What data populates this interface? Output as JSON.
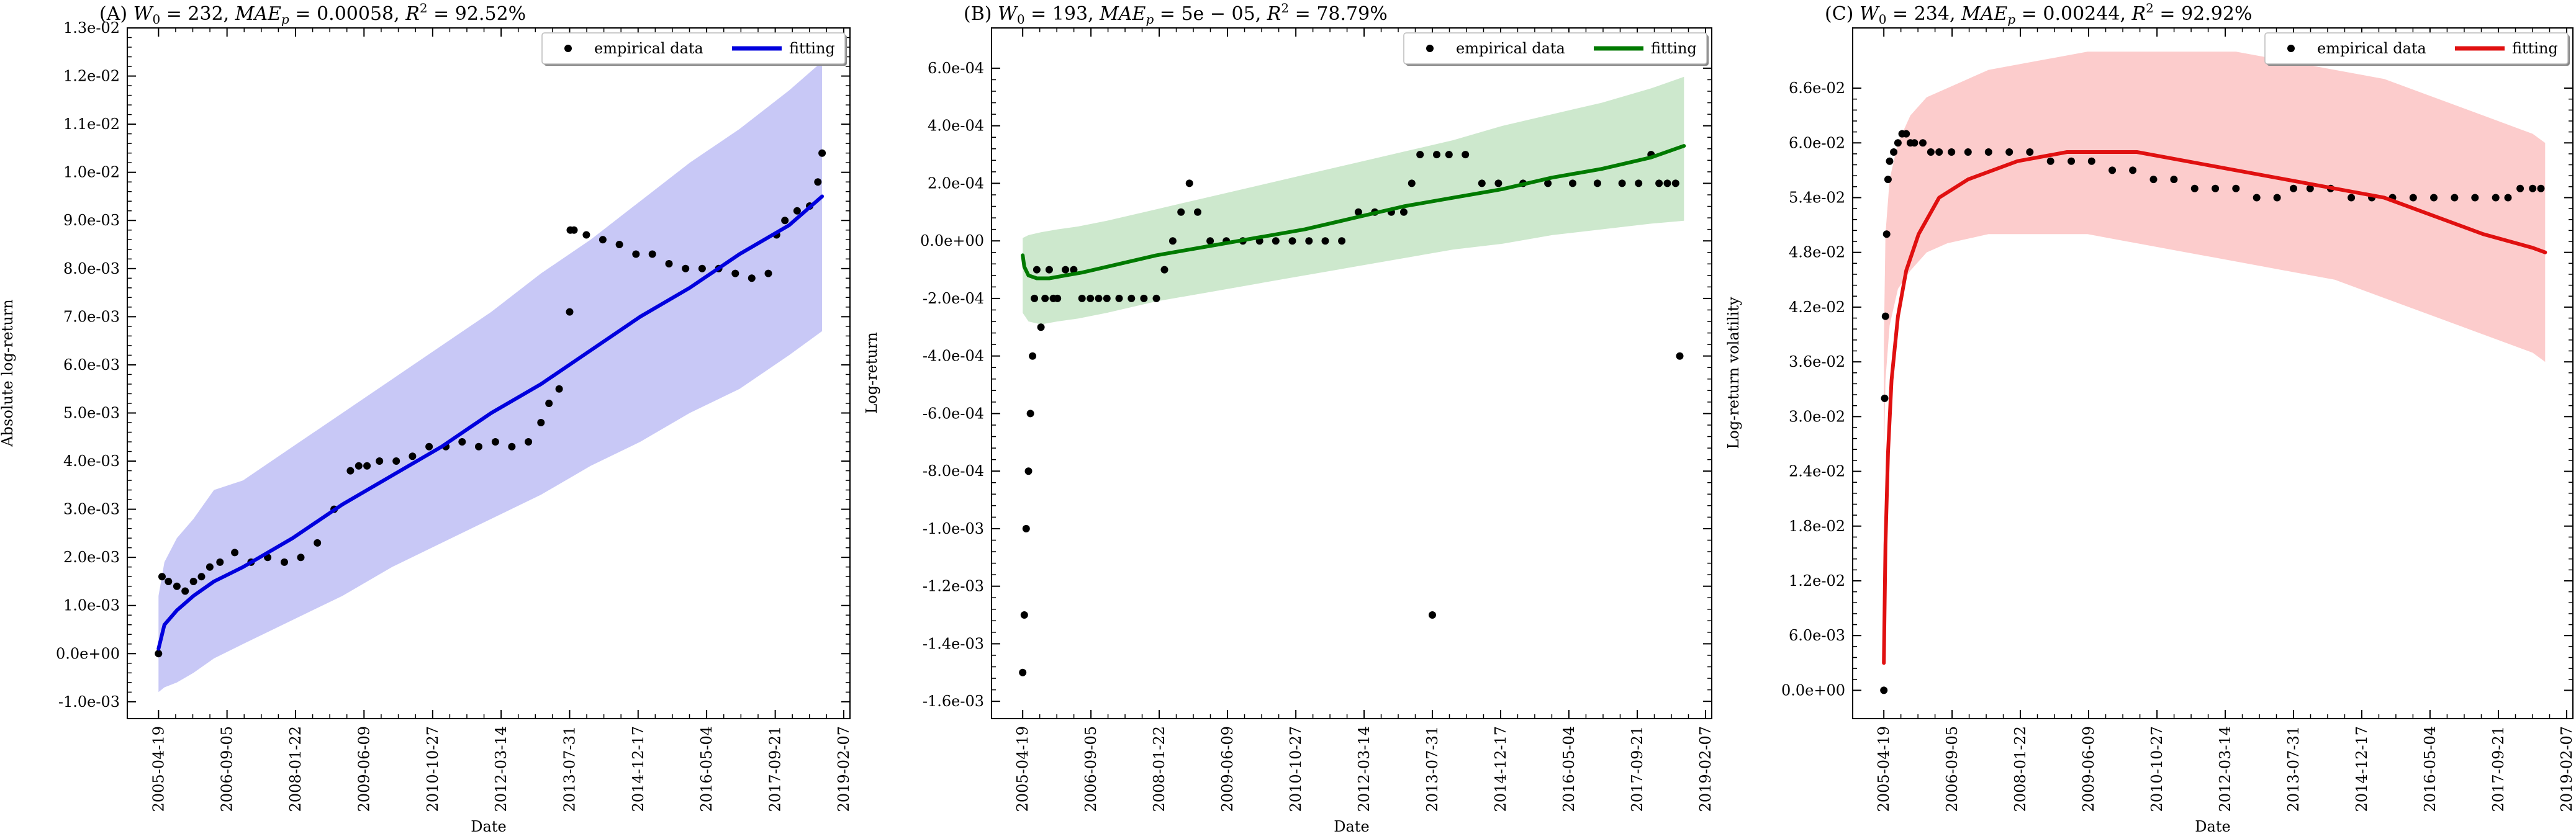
{
  "chart_data": [
    {
      "type": "scatter",
      "title": "(A) W0 = 232, MAEp = 0.00058, R2 = 92.52%",
      "title_parts": {
        "prefix": "(A) ",
        "w0": "232",
        "mae": "0.00058",
        "r2": "92.52%"
      },
      "xlabel": "Date",
      "ylabel": "Absolute log-return",
      "x_ticks": [
        "2005-04-19",
        "2006-09-05",
        "2008-01-22",
        "2009-06-09",
        "2010-10-27",
        "2012-03-14",
        "2013-07-31",
        "2014-12-17",
        "2016-05-04",
        "2017-09-21",
        "2019-02-07"
      ],
      "xlim": [
        "2004-09-01",
        "2019-03-25"
      ],
      "y_ticks": [
        "-1.0e-03",
        "0.0e+00",
        "1.0e-03",
        "2.0e-03",
        "3.0e-03",
        "4.0e-03",
        "5.0e-03",
        "6.0e-03",
        "7.0e-03",
        "8.0e-03",
        "9.0e-03",
        "1.0e-02",
        "1.1e-02",
        "1.2e-02",
        "1.3e-02"
      ],
      "ylim": [
        -0.00135,
        0.013
      ],
      "grid": false,
      "legend_position": "top-right",
      "legend": [
        "empirical data",
        "fitting"
      ],
      "colors": {
        "fit": "#0000dd",
        "band": "#c8c8f6",
        "data": "#000000"
      },
      "series": [
        {
          "name": "empirical data",
          "kind": "scatter",
          "x": [
            "2005-04-19",
            "2005-05-15",
            "2005-07-01",
            "2005-09-01",
            "2005-11-01",
            "2006-01-01",
            "2006-03-01",
            "2006-05-01",
            "2006-07-15",
            "2006-11-01",
            "2007-03-01",
            "2007-07-01",
            "2007-11-01",
            "2008-03-01",
            "2008-07-01",
            "2008-11-01",
            "2009-03-01",
            "2009-05-01",
            "2009-07-01",
            "2009-10-01",
            "2010-02-01",
            "2010-06-01",
            "2010-10-01",
            "2011-02-01",
            "2011-06-01",
            "2011-10-01",
            "2012-02-01",
            "2012-06-01",
            "2012-10-01",
            "2013-01-01",
            "2013-03-01",
            "2013-05-15",
            "2013-07-31",
            "2013-08-05",
            "2013-09-01",
            "2013-12-01",
            "2014-04-01",
            "2014-08-01",
            "2014-12-01",
            "2015-04-01",
            "2015-08-01",
            "2015-12-01",
            "2016-04-01",
            "2016-08-01",
            "2016-12-01",
            "2017-04-01",
            "2017-08-01",
            "2017-10-01",
            "2017-12-01",
            "2018-03-01",
            "2018-06-01",
            "2018-08-01",
            "2018-09-01"
          ],
          "y": [
            0.0,
            0.0016,
            0.0015,
            0.0014,
            0.0013,
            0.0015,
            0.0016,
            0.0018,
            0.0019,
            0.0021,
            0.0019,
            0.002,
            0.0019,
            0.002,
            0.0023,
            0.003,
            0.0038,
            0.0039,
            0.0039,
            0.004,
            0.004,
            0.0041,
            0.0043,
            0.0043,
            0.0044,
            0.0043,
            0.0044,
            0.0043,
            0.0044,
            0.0048,
            0.0052,
            0.0055,
            0.0071,
            0.0088,
            0.0088,
            0.0087,
            0.0086,
            0.0085,
            0.0083,
            0.0083,
            0.0081,
            0.008,
            0.008,
            0.008,
            0.0079,
            0.0078,
            0.0079,
            0.0087,
            0.009,
            0.0092,
            0.0093,
            0.0098,
            0.0104
          ]
        },
        {
          "name": "fitting",
          "kind": "line",
          "x": [
            "2005-04-19",
            "2005-06-01",
            "2005-09-01",
            "2006-01-01",
            "2006-06-01",
            "2007-01-01",
            "2008-01-01",
            "2009-01-01",
            "2010-01-01",
            "2011-01-01",
            "2012-01-01",
            "2013-01-01",
            "2014-01-01",
            "2015-01-01",
            "2016-01-01",
            "2017-01-01",
            "2018-01-01",
            "2018-09-01"
          ],
          "y": [
            0.0001,
            0.0006,
            0.0009,
            0.0012,
            0.0015,
            0.0018,
            0.0024,
            0.0031,
            0.0037,
            0.0043,
            0.005,
            0.0056,
            0.0063,
            0.007,
            0.0076,
            0.0083,
            0.0089,
            0.0095
          ]
        },
        {
          "kind": "band",
          "x": [
            "2005-04-19",
            "2005-06-01",
            "2005-09-01",
            "2006-01-01",
            "2006-06-01",
            "2007-01-01",
            "2008-01-01",
            "2009-01-01",
            "2010-01-01",
            "2011-01-01",
            "2012-01-01",
            "2013-01-01",
            "2014-01-01",
            "2015-01-01",
            "2016-01-01",
            "2017-01-01",
            "2018-01-01",
            "2018-09-01"
          ],
          "lower": [
            -0.0008,
            -0.0007,
            -0.0006,
            -0.0004,
            -0.0001,
            0.0002,
            0.0007,
            0.0012,
            0.0018,
            0.0023,
            0.0028,
            0.0033,
            0.0039,
            0.0044,
            0.005,
            0.0055,
            0.0062,
            0.0067
          ],
          "upper": [
            0.0012,
            0.0019,
            0.0024,
            0.0028,
            0.0034,
            0.0036,
            0.0043,
            0.005,
            0.0057,
            0.0064,
            0.0071,
            0.0079,
            0.0086,
            0.0094,
            0.0102,
            0.0109,
            0.0117,
            0.0123
          ]
        }
      ]
    },
    {
      "type": "scatter",
      "title": "(B) W0 = 193, MAEp = 5e − 05, R2 = 78.79%",
      "title_parts": {
        "prefix": "(B) ",
        "w0": "193",
        "mae": "5e − 05",
        "r2": "78.79%"
      },
      "xlabel": "Date",
      "ylabel": "Log-return",
      "x_ticks": [
        "2005-04-19",
        "2006-09-05",
        "2008-01-22",
        "2009-06-09",
        "2010-10-27",
        "2012-03-14",
        "2013-07-31",
        "2014-12-17",
        "2016-05-04",
        "2017-09-21",
        "2019-02-07"
      ],
      "xlim": [
        "2004-09-01",
        "2019-03-25"
      ],
      "y_ticks": [
        "-1.6e-03",
        "-1.4e-03",
        "-1.2e-03",
        "-1.0e-03",
        "-8.0e-04",
        "-6.0e-04",
        "-4.0e-04",
        "-2.0e-04",
        "0.0e+00",
        "2.0e-04",
        "4.0e-04",
        "6.0e-04"
      ],
      "ylim": [
        -0.00166,
        0.00074
      ],
      "grid": false,
      "legend_position": "top-right",
      "legend": [
        "empirical data",
        "fitting"
      ],
      "colors": {
        "fit": "#007a00",
        "band": "#cde8cd",
        "data": "#000000"
      },
      "series": [
        {
          "name": "empirical data",
          "kind": "scatter",
          "x": [
            "2005-04-19",
            "2005-05-01",
            "2005-05-15",
            "2005-06-01",
            "2005-06-15",
            "2005-07-01",
            "2005-07-15",
            "2005-08-01",
            "2005-09-01",
            "2005-10-01",
            "2005-11-01",
            "2005-12-01",
            "2006-01-01",
            "2006-03-01",
            "2006-05-01",
            "2006-07-01",
            "2006-09-01",
            "2006-11-01",
            "2007-01-01",
            "2007-04-01",
            "2007-07-01",
            "2007-10-01",
            "2008-01-01",
            "2008-03-01",
            "2008-05-01",
            "2008-07-01",
            "2008-09-01",
            "2008-11-01",
            "2009-02-01",
            "2009-06-01",
            "2009-10-01",
            "2010-02-01",
            "2010-06-01",
            "2010-10-01",
            "2011-02-01",
            "2011-06-01",
            "2011-10-01",
            "2012-02-01",
            "2012-06-01",
            "2012-10-01",
            "2013-01-01",
            "2013-03-01",
            "2013-05-01",
            "2013-07-31",
            "2013-09-01",
            "2013-12-01",
            "2014-04-01",
            "2014-08-01",
            "2014-12-01",
            "2015-06-01",
            "2015-12-01",
            "2016-06-01",
            "2016-12-01",
            "2017-06-01",
            "2017-10-01",
            "2018-01-01",
            "2018-03-01",
            "2018-05-01",
            "2018-07-01",
            "2018-08-01"
          ],
          "y": [
            -0.0015,
            -0.0013,
            -0.001,
            -0.0008,
            -0.0006,
            -0.0004,
            -0.0002,
            -0.0001,
            -0.0003,
            -0.0002,
            -0.0001,
            -0.0002,
            -0.0002,
            -0.0001,
            -0.0001,
            -0.0002,
            -0.0002,
            -0.0002,
            -0.0002,
            -0.0002,
            -0.0002,
            -0.0002,
            -0.0002,
            -0.0001,
            0.0,
            0.0001,
            0.0002,
            0.0001,
            0.0,
            0.0,
            0.0,
            0.0,
            0.0,
            0.0,
            0.0,
            0.0,
            0.0,
            0.0001,
            0.0001,
            0.0001,
            0.0001,
            0.0002,
            0.0003,
            -0.0013,
            0.0003,
            0.0003,
            0.0003,
            0.0002,
            0.0002,
            0.0002,
            0.0002,
            0.0002,
            0.0002,
            0.0002,
            0.0002,
            0.0003,
            0.0002,
            0.0002,
            0.0002,
            -0.0004
          ]
        },
        {
          "name": "fitting",
          "kind": "line",
          "x": [
            "2005-04-19",
            "2005-05-01",
            "2005-06-01",
            "2005-08-01",
            "2005-11-01",
            "2006-03-01",
            "2006-07-01",
            "2007-01-01",
            "2008-01-01",
            "2009-01-01",
            "2010-01-01",
            "2011-01-01",
            "2012-01-01",
            "2013-01-01",
            "2014-01-01",
            "2015-01-01",
            "2016-01-01",
            "2017-01-01",
            "2018-01-01",
            "2018-09-01"
          ],
          "y": [
            -5e-05,
            -9e-05,
            -0.00012,
            -0.00013,
            -0.00013,
            -0.00012,
            -0.00011,
            -9e-05,
            -5e-05,
            -2e-05,
            1e-05,
            4e-05,
            8e-05,
            0.00012,
            0.00015,
            0.00018,
            0.00022,
            0.00025,
            0.00029,
            0.00033
          ]
        },
        {
          "kind": "band",
          "x": [
            "2005-04-19",
            "2005-06-01",
            "2005-09-01",
            "2006-01-01",
            "2006-06-01",
            "2007-01-01",
            "2008-01-01",
            "2009-01-01",
            "2010-01-01",
            "2011-01-01",
            "2012-01-01",
            "2013-01-01",
            "2014-01-01",
            "2015-01-01",
            "2016-01-01",
            "2017-01-01",
            "2018-01-01",
            "2018-09-01"
          ],
          "lower": [
            -0.00025,
            -0.00028,
            -0.00029,
            -0.00028,
            -0.00027,
            -0.00025,
            -0.00021,
            -0.00018,
            -0.00015,
            -0.00012,
            -9e-05,
            -6e-05,
            -3e-05,
            -1e-05,
            2e-05,
            4e-05,
            6e-05,
            7e-05
          ],
          "upper": [
            1e-05,
            2e-05,
            3e-05,
            4e-05,
            5e-05,
            7e-05,
            0.00011,
            0.00015,
            0.00019,
            0.00023,
            0.00027,
            0.00031,
            0.00035,
            0.0004,
            0.00044,
            0.00048,
            0.00053,
            0.00057
          ]
        }
      ]
    },
    {
      "type": "scatter",
      "title": "(C) W0 = 234, MAEp = 0.00244, R2 = 92.92%",
      "title_parts": {
        "prefix": "(C) ",
        "w0": "234",
        "mae": "0.00244",
        "r2": "92.92%"
      },
      "xlabel": "Date",
      "ylabel": "Log-return volatility",
      "x_ticks": [
        "2005-04-19",
        "2006-09-05",
        "2008-01-22",
        "2009-06-09",
        "2010-10-27",
        "2012-03-14",
        "2013-07-31",
        "2014-12-17",
        "2016-05-04",
        "2017-09-21",
        "2019-02-07"
      ],
      "xlim": [
        "2004-09-01",
        "2019-03-25"
      ],
      "y_ticks": [
        "0.0e+00",
        "6.0e-03",
        "1.2e-02",
        "1.8e-02",
        "2.4e-02",
        "3.0e-02",
        "3.6e-02",
        "4.2e-02",
        "4.8e-02",
        "5.4e-02",
        "6.0e-02",
        "6.6e-02"
      ],
      "ylim": [
        -0.0031,
        0.0726
      ],
      "grid": false,
      "legend_position": "top-right",
      "legend": [
        "empirical data",
        "fitting"
      ],
      "colors": {
        "fit": "#e01010",
        "band": "#fccccc",
        "data": "#000000"
      },
      "series": [
        {
          "name": "empirical data",
          "kind": "scatter",
          "x": [
            "2005-04-19",
            "2005-04-25",
            "2005-05-01",
            "2005-05-10",
            "2005-05-20",
            "2005-06-01",
            "2005-07-01",
            "2005-08-01",
            "2005-09-01",
            "2005-10-01",
            "2005-11-01",
            "2005-12-01",
            "2006-02-01",
            "2006-04-01",
            "2006-06-01",
            "2006-09-01",
            "2007-01-01",
            "2007-06-01",
            "2007-11-01",
            "2008-04-01",
            "2008-09-01",
            "2009-02-01",
            "2009-07-01",
            "2009-12-01",
            "2010-05-01",
            "2010-10-01",
            "2011-03-01",
            "2011-08-01",
            "2012-01-01",
            "2012-06-01",
            "2012-11-01",
            "2013-04-01",
            "2013-07-31",
            "2013-12-01",
            "2014-05-01",
            "2014-10-01",
            "2015-03-01",
            "2015-08-01",
            "2016-01-01",
            "2016-06-01",
            "2016-11-01",
            "2017-04-01",
            "2017-09-01",
            "2017-12-01",
            "2018-03-01",
            "2018-06-01",
            "2018-08-01"
          ],
          "y": [
            0.0,
            0.032,
            0.041,
            0.05,
            0.056,
            0.058,
            0.059,
            0.06,
            0.061,
            0.061,
            0.06,
            0.06,
            0.06,
            0.059,
            0.059,
            0.059,
            0.059,
            0.059,
            0.059,
            0.059,
            0.058,
            0.058,
            0.058,
            0.057,
            0.057,
            0.056,
            0.056,
            0.055,
            0.055,
            0.055,
            0.054,
            0.054,
            0.055,
            0.055,
            0.055,
            0.054,
            0.054,
            0.054,
            0.054,
            0.054,
            0.054,
            0.054,
            0.054,
            0.054,
            0.055,
            0.055,
            0.055
          ]
        },
        {
          "name": "fitting",
          "kind": "line",
          "x": [
            "2005-04-19",
            "2005-05-01",
            "2005-05-20",
            "2005-06-15",
            "2005-08-01",
            "2005-10-01",
            "2006-01-01",
            "2006-06-01",
            "2007-01-01",
            "2008-01-01",
            "2009-01-01",
            "2009-09-01",
            "2010-06-01",
            "2011-06-01",
            "2012-06-01",
            "2013-06-01",
            "2014-06-01",
            "2015-06-01",
            "2016-06-01",
            "2017-06-01",
            "2018-06-01",
            "2018-09-01"
          ],
          "y": [
            0.003,
            0.016,
            0.026,
            0.034,
            0.041,
            0.046,
            0.05,
            0.054,
            0.056,
            0.058,
            0.059,
            0.059,
            0.059,
            0.058,
            0.057,
            0.056,
            0.055,
            0.054,
            0.052,
            0.05,
            0.0485,
            0.048
          ]
        },
        {
          "kind": "band",
          "x": [
            "2005-04-19",
            "2005-05-01",
            "2005-06-01",
            "2005-08-01",
            "2005-11-01",
            "2006-03-01",
            "2006-08-01",
            "2007-06-01",
            "2008-06-01",
            "2009-06-01",
            "2010-06-01",
            "2011-06-01",
            "2012-06-01",
            "2013-06-01",
            "2014-06-01",
            "2015-06-01",
            "2016-06-01",
            "2017-06-01",
            "2018-06-01",
            "2018-09-01"
          ],
          "lower": [
            0.025,
            0.034,
            0.04,
            0.044,
            0.046,
            0.048,
            0.049,
            0.05,
            0.05,
            0.05,
            0.049,
            0.048,
            0.047,
            0.046,
            0.045,
            0.043,
            0.041,
            0.039,
            0.037,
            0.036
          ],
          "upper": [
            0.038,
            0.05,
            0.056,
            0.06,
            0.063,
            0.065,
            0.066,
            0.068,
            0.069,
            0.07,
            0.07,
            0.07,
            0.07,
            0.069,
            0.068,
            0.067,
            0.065,
            0.063,
            0.061,
            0.06
          ]
        }
      ]
    }
  ]
}
